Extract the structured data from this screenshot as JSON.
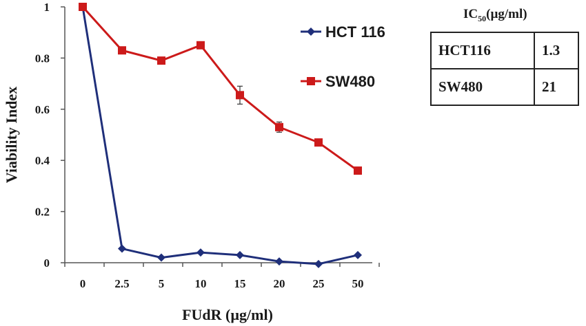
{
  "chart_data": {
    "type": "line",
    "categories": [
      "0",
      "2.5",
      "5",
      "10",
      "15",
      "20",
      "25",
      "50"
    ],
    "series": [
      {
        "name": "HCT 116",
        "color": "#1f2f7a",
        "marker": "diamond",
        "values": [
          1.0,
          0.055,
          0.02,
          0.04,
          0.03,
          0.005,
          -0.005,
          0.03
        ]
      },
      {
        "name": "SW480",
        "color": "#cc1a1a",
        "marker": "square",
        "values": [
          1.0,
          0.83,
          0.79,
          0.85,
          0.655,
          0.53,
          0.47,
          0.36
        ],
        "error": [
          0,
          0,
          0,
          0,
          0.035,
          0.02,
          0,
          0
        ]
      }
    ],
    "xlabel": "FUdR (µg/ml)",
    "ylabel": "Viability Index",
    "ylim": [
      0,
      1
    ],
    "yticks": [
      "0",
      "0.2",
      "0.4",
      "0.6",
      "0.8",
      "1"
    ],
    "grid": false,
    "legend_position": "right"
  },
  "ic50_table": {
    "title_main": "IC",
    "title_sub": "50",
    "title_unit": "(µg/ml)",
    "rows": [
      {
        "name": "HCT116",
        "value": "1.3"
      },
      {
        "name": "SW480",
        "value": "21"
      }
    ]
  }
}
